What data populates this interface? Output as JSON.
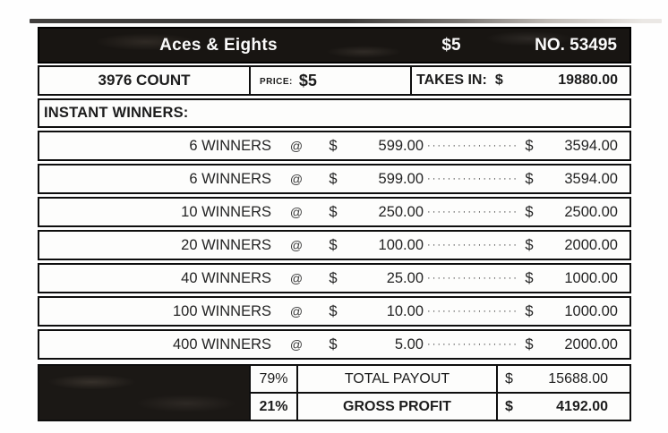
{
  "header": {
    "title": "Aces & Eights",
    "price": "$5",
    "number": "NO. 53495"
  },
  "summary": {
    "count": "3976 COUNT",
    "price_label": "PRICE:",
    "price_value": "$5",
    "takes_in_label": "TAKES IN:",
    "takes_in_value": "19880.00"
  },
  "section_label": "INSTANT WINNERS:",
  "symbols": {
    "at": "@",
    "currency": "$",
    "leader": "··················"
  },
  "winners": [
    {
      "count": "6 WINNERS",
      "each": "599.00",
      "total": "3594.00"
    },
    {
      "count": "6 WINNERS",
      "each": "599.00",
      "total": "3594.00"
    },
    {
      "count": "10 WINNERS",
      "each": "250.00",
      "total": "2500.00"
    },
    {
      "count": "20 WINNERS",
      "each": "100.00",
      "total": "2000.00"
    },
    {
      "count": "40 WINNERS",
      "each": "25.00",
      "total": "1000.00"
    },
    {
      "count": "100 WINNERS",
      "each": "10.00",
      "total": "1000.00"
    },
    {
      "count": "400 WINNERS",
      "each": "5.00",
      "total": "2000.00"
    }
  ],
  "footer": {
    "payout_pct": "79%",
    "payout_label": "TOTAL PAYOUT",
    "payout_value": "15688.00",
    "profit_pct": "21%",
    "profit_label": "GROSS PROFIT",
    "profit_value": "4192.00"
  }
}
